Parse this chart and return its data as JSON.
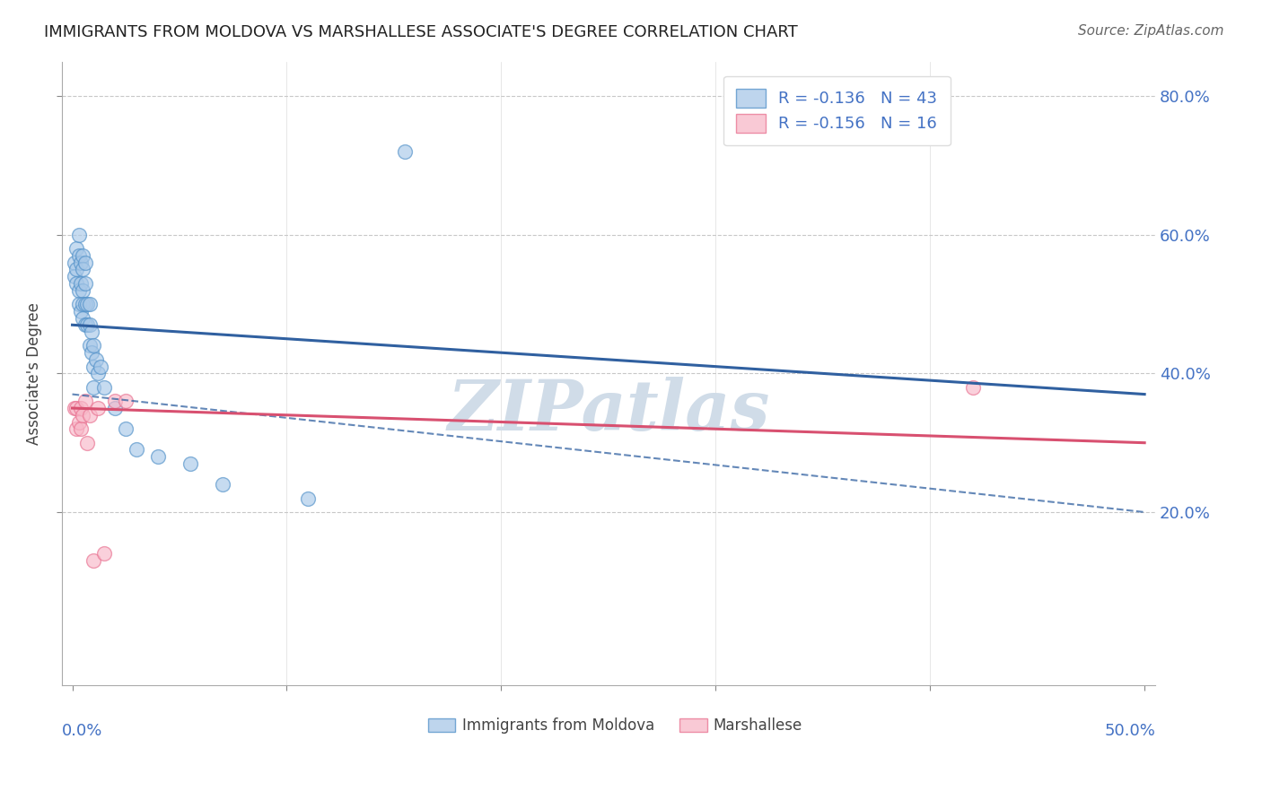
{
  "title": "IMMIGRANTS FROM MOLDOVA VS MARSHALLESE ASSOCIATE'S DEGREE CORRELATION CHART",
  "source": "Source: ZipAtlas.com",
  "ylabel": "Associate's Degree",
  "xlim": [
    0,
    0.5
  ],
  "ylim": [
    0,
    0.8
  ],
  "yticks": [
    0.2,
    0.4,
    0.6,
    0.8
  ],
  "ytick_labels": [
    "20.0%",
    "40.0%",
    "60.0%",
    "80.0%"
  ],
  "legend_r1": "R = -0.136   N = 43",
  "legend_r2": "R = -0.156   N = 16",
  "blue_fill": "#a8c8e8",
  "pink_fill": "#f8b8c8",
  "blue_edge": "#5090c8",
  "pink_edge": "#e87090",
  "blue_line": "#3060a0",
  "pink_line": "#d85070",
  "grid_color": "#c8c8c8",
  "watermark": "ZIPatlas",
  "watermark_color": "#d0dce8",
  "tick_label_color": "#4472c4",
  "moldova_x": [
    0.001,
    0.001,
    0.002,
    0.002,
    0.002,
    0.003,
    0.003,
    0.003,
    0.003,
    0.004,
    0.004,
    0.004,
    0.005,
    0.005,
    0.005,
    0.005,
    0.005,
    0.006,
    0.006,
    0.006,
    0.006,
    0.007,
    0.007,
    0.008,
    0.008,
    0.008,
    0.009,
    0.009,
    0.01,
    0.01,
    0.01,
    0.011,
    0.012,
    0.013,
    0.015,
    0.02,
    0.025,
    0.03,
    0.04,
    0.055,
    0.07,
    0.11,
    0.155
  ],
  "moldova_y": [
    0.56,
    0.54,
    0.58,
    0.55,
    0.53,
    0.6,
    0.57,
    0.52,
    0.5,
    0.56,
    0.53,
    0.49,
    0.57,
    0.55,
    0.52,
    0.5,
    0.48,
    0.56,
    0.53,
    0.5,
    0.47,
    0.5,
    0.47,
    0.5,
    0.47,
    0.44,
    0.46,
    0.43,
    0.44,
    0.41,
    0.38,
    0.42,
    0.4,
    0.41,
    0.38,
    0.35,
    0.32,
    0.29,
    0.28,
    0.27,
    0.24,
    0.22,
    0.72
  ],
  "marshallese_x": [
    0.001,
    0.002,
    0.002,
    0.003,
    0.004,
    0.004,
    0.005,
    0.006,
    0.007,
    0.008,
    0.01,
    0.012,
    0.015,
    0.02,
    0.025,
    0.42
  ],
  "marshallese_y": [
    0.35,
    0.35,
    0.32,
    0.33,
    0.35,
    0.32,
    0.34,
    0.36,
    0.3,
    0.34,
    0.13,
    0.35,
    0.14,
    0.36,
    0.36,
    0.38
  ],
  "blue_trendline": [
    0.47,
    0.37
  ],
  "blue_dashed": [
    0.37,
    0.2
  ],
  "pink_trendline": [
    0.35,
    0.3
  ]
}
